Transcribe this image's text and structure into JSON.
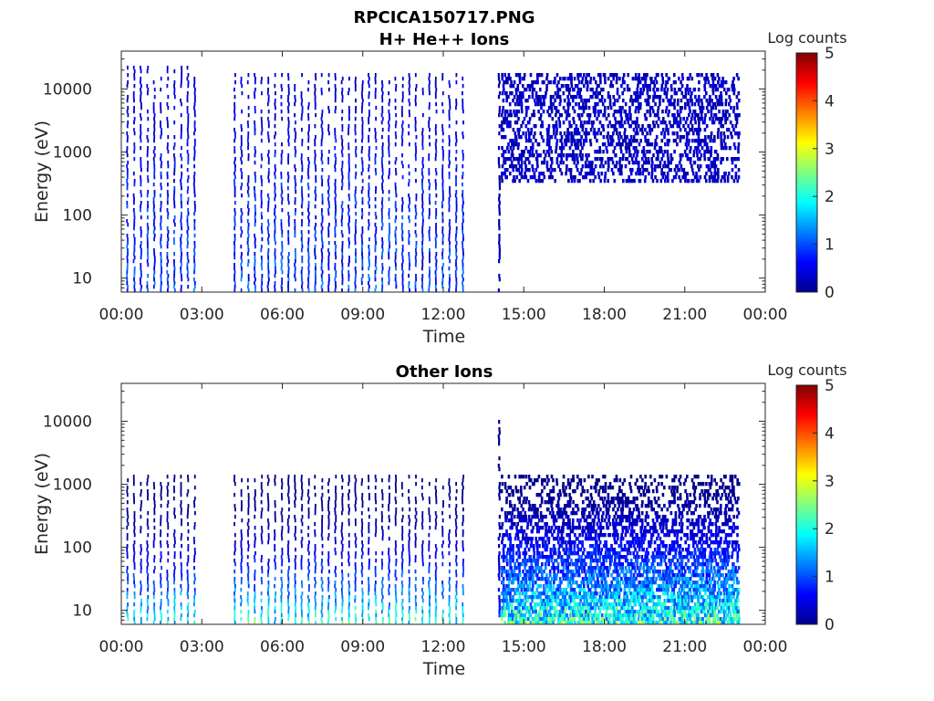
{
  "figure": {
    "title": "RPCICA150717.PNG"
  },
  "colorbar": {
    "label": "Log counts",
    "ticks": [
      "0",
      "1",
      "2",
      "3",
      "4",
      "5"
    ],
    "range": [
      0,
      5
    ],
    "colormap": "jet"
  },
  "chart_data": [
    {
      "type": "heatmap",
      "title": "H+ He++ Ions",
      "xlabel": "Time",
      "ylabel": "Energy (eV)",
      "x_ticks": [
        "00:00",
        "03:00",
        "06:00",
        "09:00",
        "12:00",
        "15:00",
        "18:00",
        "21:00",
        "00:00"
      ],
      "xlim_hours": [
        0,
        24
      ],
      "y_ticks": [
        "10",
        "100",
        "1000",
        "10000"
      ],
      "y_scale": "log",
      "ylim": [
        6,
        40000
      ],
      "value": "log counts",
      "segments": [
        {
          "start_h": 0.2,
          "end_h": 2.7,
          "mode": "pulsed",
          "pulse_period_h": 0.25,
          "energy_low": 6,
          "energy_high": 25000,
          "peak_log_counts": 1.8
        },
        {
          "start_h": 4.2,
          "end_h": 12.8,
          "mode": "pulsed",
          "pulse_period_h": 0.25,
          "energy_low": 6,
          "energy_high": 20000,
          "peak_log_counts": 1.8
        },
        {
          "start_h": 14.05,
          "end_h": 14.15,
          "mode": "spike",
          "energy_low": 6,
          "energy_high": 20000,
          "peak_log_counts": 0.6
        },
        {
          "start_h": 14.15,
          "end_h": 23.0,
          "mode": "continuous",
          "energy_low": 300,
          "energy_high": 20000,
          "peak_log_counts": 0.5
        }
      ]
    },
    {
      "type": "heatmap",
      "title": "Other Ions",
      "xlabel": "Time",
      "ylabel": "Energy (eV)",
      "x_ticks": [
        "00:00",
        "03:00",
        "06:00",
        "09:00",
        "12:00",
        "15:00",
        "18:00",
        "21:00",
        "00:00"
      ],
      "xlim_hours": [
        0,
        24
      ],
      "y_ticks": [
        "10",
        "100",
        "1000",
        "10000"
      ],
      "y_scale": "log",
      "ylim": [
        6,
        40000
      ],
      "value": "log counts",
      "segments": [
        {
          "start_h": 0.2,
          "end_h": 2.7,
          "mode": "pulsed",
          "pulse_period_h": 0.25,
          "energy_low": 6,
          "energy_high": 1500,
          "peak_log_counts": 2.6
        },
        {
          "start_h": 4.2,
          "end_h": 12.8,
          "mode": "pulsed",
          "pulse_period_h": 0.25,
          "energy_low": 6,
          "energy_high": 1500,
          "peak_log_counts": 2.8
        },
        {
          "start_h": 14.05,
          "end_h": 14.15,
          "mode": "spike",
          "energy_low": 6,
          "energy_high": 12000,
          "peak_log_counts": 1.0
        },
        {
          "start_h": 14.15,
          "end_h": 23.0,
          "mode": "continuous",
          "energy_low": 6,
          "energy_high": 1500,
          "peak_log_counts": 3.0
        }
      ]
    }
  ]
}
